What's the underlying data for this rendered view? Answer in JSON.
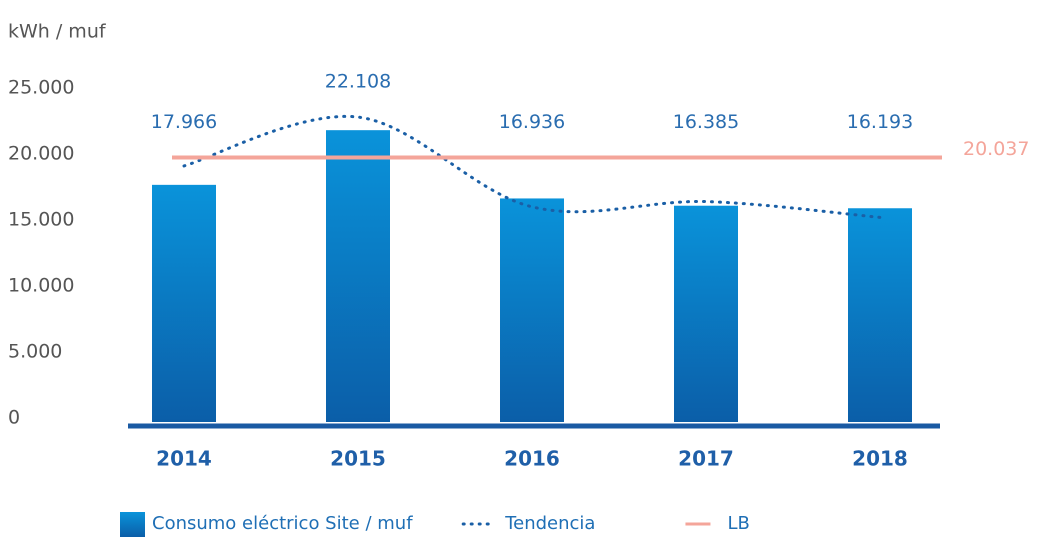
{
  "chart_data": {
    "type": "bar",
    "y_axis_label": "kWh / muf",
    "categories": [
      "2014",
      "2015",
      "2016",
      "2017",
      "2018"
    ],
    "series": [
      {
        "name": "Consumo eléctrico Site / muf",
        "type": "bar",
        "color": "#0b5ea8",
        "color_top": "#0a93da",
        "values": [
          17966,
          22108,
          16936,
          16385,
          16193
        ],
        "value_labels": [
          "17.966",
          "22.108",
          "16.936",
          "16.385",
          "16.193"
        ]
      },
      {
        "name": "Tendencia",
        "type": "line",
        "color": "#1a5fa6",
        "values": [
          19400,
          23100,
          16300,
          16700,
          15500
        ]
      },
      {
        "name": "LB",
        "type": "hline",
        "color": "#f4a59a",
        "value": 20037,
        "value_label": "20.037"
      }
    ],
    "ylim": [
      0,
      25000
    ],
    "yticks": [
      0,
      {
        "value": 5000,
        "label": "5.000"
      },
      {
        "value": 10000,
        "label": "10.000"
      },
      {
        "value": 15000,
        "label": "15.000"
      },
      {
        "value": 20000,
        "label": "20.000"
      },
      {
        "value": 25000,
        "label": "25.000"
      }
    ],
    "legend": "bottom"
  }
}
